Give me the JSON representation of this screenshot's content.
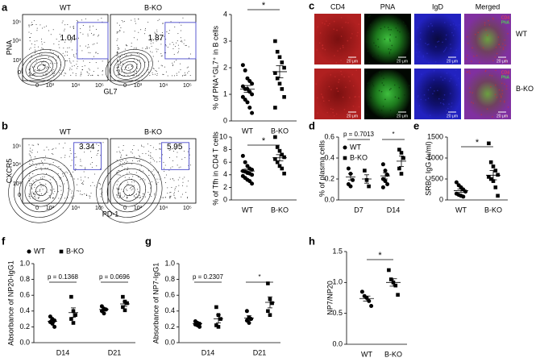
{
  "panel_labels": [
    "a",
    "b",
    "c",
    "d",
    "e",
    "f",
    "g",
    "h"
  ],
  "flow_panels": [
    {
      "ylabel": "PNA",
      "xlabel": "GL7",
      "xticks": [
        "0",
        "10³",
        "10⁴",
        "10⁵"
      ],
      "yticks": [
        "0",
        "10³",
        "10⁴",
        "10⁵"
      ],
      "plots": [
        {
          "title": "WT",
          "gate": "1.04"
        },
        {
          "title": "B-KO",
          "gate": "1.87"
        }
      ]
    },
    {
      "ylabel": "CXCR5",
      "xlabel": "PD-1",
      "xticks": [
        "0",
        "10³",
        "10⁴",
        "10⁵"
      ],
      "yticks": [
        "0",
        "10³",
        "10⁴",
        "10⁵"
      ],
      "plots": [
        {
          "title": "WT",
          "gate": "3.34"
        },
        {
          "title": "B-KO",
          "gate": "5.95"
        }
      ]
    }
  ],
  "images": {
    "columns": [
      "CD4",
      "PNA",
      "IgD",
      "Merged"
    ],
    "rows": [
      "WT",
      "B-KO"
    ],
    "scale_label": "20 μm",
    "merged_legend": [
      "CD4",
      "PNA"
    ]
  },
  "chart_data": [
    {
      "type": "dot",
      "ylabel": "% of PNA⁺GL7⁺ in B cells",
      "categories": [
        "WT",
        "B-KO"
      ],
      "markers": [
        "circle",
        "square"
      ],
      "color": "#000000",
      "points": [
        [
          2.1,
          1.9,
          1.6,
          1.5,
          1.4,
          1.3,
          1.2,
          1.2,
          1.1,
          1.0,
          0.9,
          0.8,
          0.7,
          0.5,
          0.3
        ],
        [
          3.0,
          2.6,
          2.4,
          2.2,
          2.0,
          1.8,
          1.6,
          1.4,
          1.2,
          0.9,
          0.5
        ]
      ],
      "mean": [
        1.2,
        1.85
      ],
      "sem": [
        0.13,
        0.23
      ],
      "ylim": [
        0,
        4
      ],
      "yticks": [
        0,
        1,
        2,
        3,
        4
      ],
      "annotation": "*"
    },
    {
      "type": "dot",
      "ylabel": "% of Tfh in CD4 T cells",
      "categories": [
        "WT",
        "B-KO"
      ],
      "markers": [
        "circle",
        "square"
      ],
      "color": "#000000",
      "points": [
        [
          7.0,
          6.0,
          5.4,
          5.0,
          4.8,
          4.6,
          4.5,
          4.3,
          4.2,
          4.0,
          3.8,
          3.5,
          3.2,
          3.0,
          2.6
        ],
        [
          10.0,
          8.4,
          7.8,
          7.2,
          6.8,
          6.5,
          6.0,
          5.4,
          5.0,
          4.2
        ]
      ],
      "mean": [
        4.6,
        6.7
      ],
      "sem": [
        0.3,
        0.5
      ],
      "ylim": [
        0,
        10
      ],
      "yticks": [
        0,
        2,
        4,
        6,
        8,
        10
      ],
      "annotation": "*"
    },
    {
      "type": "grouped_dot",
      "ylabel": "% of plasma cells",
      "categories": [
        "D7",
        "D14"
      ],
      "color": "#000000",
      "legend": "upper left",
      "series": [
        {
          "name": "WT",
          "marker": "circle",
          "points": [
            [
              0.3,
              0.25,
              0.19,
              0.15,
              0.13
            ],
            [
              0.34,
              0.28,
              0.24,
              0.2,
              0.18,
              0.15,
              0.12
            ]
          ],
          "mean": [
            0.22,
            0.23
          ],
          "sem": [
            0.03,
            0.03
          ]
        },
        {
          "name": "B-KO",
          "marker": "square",
          "points": [
            [
              0.28,
              0.19,
              0.13
            ],
            [
              0.48,
              0.45,
              0.4,
              0.3,
              0.25
            ]
          ],
          "mean": [
            0.2,
            0.37
          ],
          "sem": [
            0.04,
            0.05
          ]
        }
      ],
      "ylim": [
        0,
        0.6
      ],
      "yticks": [
        {
          "value": 0,
          "label": "0.0"
        },
        0.2,
        0.4,
        0.6
      ],
      "annotations": [
        "p = 0.7013",
        "*"
      ]
    },
    {
      "type": "dot",
      "ylabel": "SRBC IgG (u/ml)",
      "categories": [
        "WT",
        "B-KO"
      ],
      "markers": [
        "circle",
        "square"
      ],
      "color": "#000000",
      "points": [
        [
          420,
          350,
          300,
          250,
          200,
          150,
          120,
          100,
          80
        ],
        [
          1350,
          900,
          800,
          700,
          600,
          550,
          500,
          450,
          300,
          100
        ]
      ],
      "mean": [
        220,
        590
      ],
      "sem": [
        40,
        110
      ],
      "ylim": [
        0,
        1500
      ],
      "yticks": [
        0,
        500,
        1000,
        1500
      ],
      "annotation": "*"
    },
    {
      "type": "grouped_dot",
      "ylabel": "Absorbance of NP20-IgG1",
      "categories": [
        "D14",
        "D21"
      ],
      "color": "#000000",
      "legend": "above",
      "series": [
        {
          "name": "WT",
          "marker": "circle",
          "points": [
            [
              0.33,
              0.3,
              0.28,
              0.26,
              0.24,
              0.2
            ],
            [
              0.46,
              0.43,
              0.42,
              0.4,
              0.37
            ]
          ],
          "mean": [
            0.27,
            0.42
          ],
          "sem": [
            0.02,
            0.02
          ]
        },
        {
          "name": "B-KO",
          "marker": "square",
          "points": [
            [
              0.58,
              0.4,
              0.35,
              0.3,
              0.25
            ],
            [
              0.58,
              0.52,
              0.5,
              0.45,
              0.41
            ]
          ],
          "mean": [
            0.38,
            0.49
          ],
          "sem": [
            0.06,
            0.03
          ]
        }
      ],
      "ylim": [
        0,
        1
      ],
      "yticks": [
        {
          "value": 0,
          "label": "0.0"
        },
        0.2,
        0.4,
        0.6,
        0.8,
        {
          "value": 1,
          "label": "1.0"
        }
      ],
      "annotations": [
        "p = 0.1368",
        "p = 0.0696"
      ]
    },
    {
      "type": "grouped_dot",
      "ylabel": "Absorbance of NP7-IgG1",
      "categories": [
        "D14",
        "D21"
      ],
      "color": "#000000",
      "series": [
        {
          "marker": "circle",
          "points": [
            [
              0.27,
              0.25,
              0.24,
              0.23,
              0.22,
              0.2
            ],
            [
              0.4,
              0.32,
              0.3,
              0.28,
              0.25
            ]
          ],
          "mean": [
            0.24,
            0.31
          ],
          "sem": [
            0.01,
            0.03
          ]
        },
        {
          "marker": "square",
          "points": [
            [
              0.45,
              0.35,
              0.3,
              0.22,
              0.2
            ],
            [
              0.75,
              0.55,
              0.5,
              0.4,
              0.35
            ]
          ],
          "mean": [
            0.3,
            0.51
          ],
          "sem": [
            0.05,
            0.07
          ]
        }
      ],
      "ylim": [
        0,
        1
      ],
      "yticks": [
        {
          "value": 0,
          "label": "0.0"
        },
        0.2,
        0.4,
        0.6,
        0.8,
        {
          "value": 1,
          "label": "1.0"
        }
      ],
      "annotations": [
        "p = 0.2307",
        "*"
      ]
    },
    {
      "type": "dot",
      "ylabel": "NP7/NP20",
      "categories": [
        "WT",
        "B-KO"
      ],
      "markers": [
        "circle",
        "square"
      ],
      "color": "#000000",
      "points": [
        [
          0.85,
          0.78,
          0.75,
          0.7,
          0.62
        ],
        [
          1.2,
          1.05,
          1.0,
          0.95,
          0.8
        ]
      ],
      "mean": [
        0.74,
        1.0
      ],
      "sem": [
        0.04,
        0.06
      ],
      "ylim": [
        0,
        1.5
      ],
      "yticks": [
        {
          "value": 0,
          "label": "0.0"
        },
        0.5,
        {
          "value": 1,
          "label": "1.0"
        },
        1.5
      ],
      "annotation": "*"
    }
  ]
}
